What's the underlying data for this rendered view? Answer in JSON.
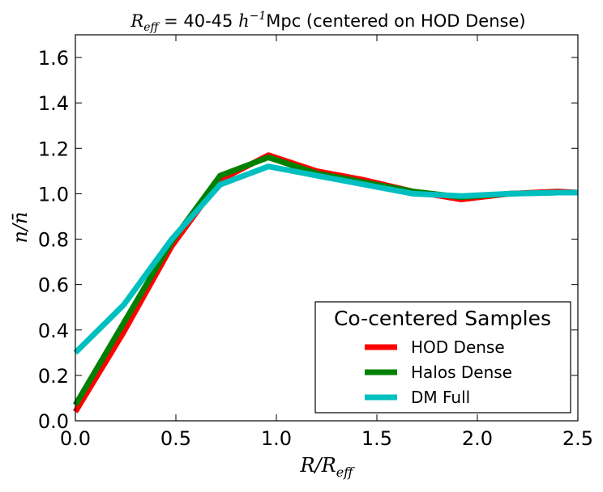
{
  "chart_data": {
    "type": "line",
    "title_math": "R",
    "title_math_sub": "eff",
    "title_rest": " = 40-45 ",
    "title_h": "h",
    "title_h_exp": "−1",
    "title_tail": "Mpc (centered on HOD Dense)",
    "xlabel_main": "R/R",
    "xlabel_sub": "eff",
    "ylabel": "n/n̄",
    "xlim": [
      0.0,
      2.5
    ],
    "ylim": [
      0.0,
      1.7
    ],
    "xticks": [
      0.0,
      0.5,
      1.0,
      1.5,
      2.0,
      2.5
    ],
    "xtick_labels": [
      "0.0",
      "0.5",
      "1.0",
      "1.5",
      "2.0",
      "2.5"
    ],
    "yticks": [
      0.0,
      0.2,
      0.4,
      0.6,
      0.8,
      1.0,
      1.2,
      1.4,
      1.6
    ],
    "ytick_labels": [
      "0.0",
      "0.2",
      "0.4",
      "0.6",
      "0.8",
      "1.0",
      "1.2",
      "1.4",
      "1.6"
    ],
    "legend_title": "Co-centered Samples",
    "legend_location": "lower-right",
    "series": [
      {
        "name": "HOD Dense",
        "color": "#ff0000",
        "x": [
          0.0,
          0.24,
          0.48,
          0.72,
          0.96,
          1.2,
          1.44,
          1.68,
          1.92,
          2.16,
          2.4,
          2.5
        ],
        "y": [
          0.04,
          0.39,
          0.77,
          1.06,
          1.17,
          1.1,
          1.06,
          1.01,
          0.975,
          1.0,
          1.01,
          1.005
        ]
      },
      {
        "name": "Halos Dense",
        "color": "#008000",
        "x": [
          0.0,
          0.24,
          0.48,
          0.72,
          0.96,
          1.2,
          1.44,
          1.68,
          1.92,
          2.16,
          2.4,
          2.5
        ],
        "y": [
          0.07,
          0.43,
          0.79,
          1.08,
          1.16,
          1.09,
          1.05,
          1.01,
          0.985,
          1.0,
          1.005,
          1.005
        ]
      },
      {
        "name": "DM Full",
        "color": "#00bfbf",
        "x": [
          0.0,
          0.24,
          0.48,
          0.72,
          0.96,
          1.2,
          1.44,
          1.68,
          1.92,
          2.16,
          2.4,
          2.5
        ],
        "y": [
          0.3,
          0.51,
          0.8,
          1.04,
          1.12,
          1.08,
          1.04,
          1.0,
          0.99,
          1.0,
          1.005,
          1.005
        ]
      }
    ]
  }
}
